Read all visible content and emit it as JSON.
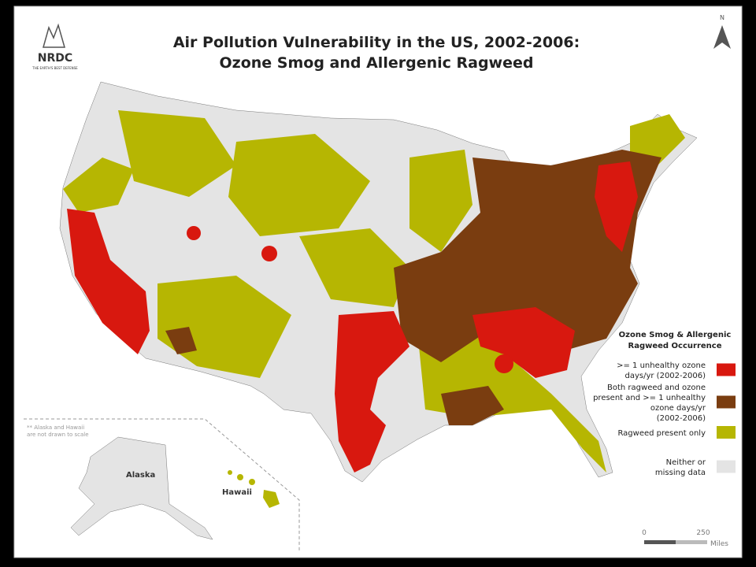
{
  "header": {
    "title_lines": [
      "Air Pollution Vulnerability in the US, 2002-2006:",
      "Ozone Smog and Allergenic Ragweed"
    ],
    "logo": "NRDC",
    "logo_tagline": "THE EARTH'S BEST DEFENSE"
  },
  "north_label": "N",
  "legend": {
    "title_lines": [
      "Ozone Smog & Allergenic",
      "Ragweed Occurrence"
    ],
    "items": [
      {
        "label_lines": [
          ">= 1 unhealthy ozone",
          "days/yr (2002-2006)"
        ],
        "color": "#d8180f"
      },
      {
        "label_lines": [
          "Both ragweed and ozone",
          "present and >= 1 unhealthy",
          "ozone days/yr",
          "(2002-2006)"
        ],
        "color": "#7a3d10"
      },
      {
        "label_lines": [
          "Ragweed present only"
        ],
        "color": "#b6b602"
      },
      {
        "label_lines": [
          "Neither or",
          "missing data"
        ],
        "color": "#e4e4e4"
      }
    ]
  },
  "inset": {
    "note_lines": [
      "** Alaska and Hawaii",
      "are not drawn to scale"
    ],
    "alaska": "Alaska",
    "hawaii": "Hawaii"
  },
  "scale": {
    "labels": [
      "0",
      "250"
    ],
    "unit": "Miles"
  }
}
